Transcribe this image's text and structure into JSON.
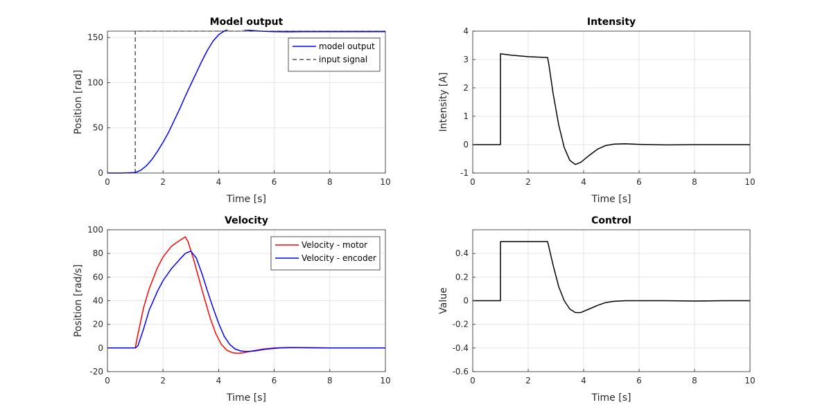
{
  "chart_data": [
    {
      "type": "line",
      "title": "Model output",
      "xlabel": "Time [s]",
      "ylabel": "Position [rad]",
      "xlim": [
        0,
        10
      ],
      "ylim": [
        0,
        157
      ],
      "xticks": [
        "0",
        "2",
        "4",
        "6",
        "8",
        "10"
      ],
      "yticks": [
        "0",
        "50",
        "100",
        "150"
      ],
      "grid": true,
      "legend": "top-right",
      "series": [
        {
          "name": "model output",
          "color": "#0000ff",
          "style": "solid",
          "x": [
            0,
            0.5,
            1.0,
            1.2,
            1.4,
            1.6,
            1.8,
            2.0,
            2.2,
            2.4,
            2.6,
            2.8,
            3.0,
            3.2,
            3.4,
            3.6,
            3.8,
            4.0,
            4.2,
            4.4,
            4.6,
            4.8,
            5.0,
            5.5,
            6.0,
            6.5,
            7.0,
            8.0,
            9.0,
            10.0
          ],
          "y": [
            0,
            0,
            0.5,
            3,
            8,
            15,
            24,
            34,
            45,
            58,
            71,
            85,
            98,
            111,
            124,
            136,
            146,
            153,
            157,
            159.5,
            160,
            159.3,
            158.2,
            157,
            156.4,
            156.2,
            156.4,
            156.5,
            156.5,
            156.5
          ]
        },
        {
          "name": "input signal",
          "color": "#000000",
          "style": "dashed",
          "x": [
            0,
            1.0,
            1.0,
            10
          ],
          "y": [
            0,
            0,
            157,
            157
          ]
        }
      ]
    },
    {
      "type": "line",
      "title": "Intensity",
      "xlabel": "Time [s]",
      "ylabel": "Intensity [A]",
      "xlim": [
        0,
        10
      ],
      "ylim": [
        -1,
        4
      ],
      "xticks": [
        "0",
        "2",
        "4",
        "6",
        "8",
        "10"
      ],
      "yticks": [
        "-1",
        "0",
        "1",
        "2",
        "3",
        "4"
      ],
      "grid": true,
      "series": [
        {
          "color": "#000000",
          "style": "solid",
          "x": [
            0,
            1.0,
            1.0,
            1.4,
            2.0,
            2.7,
            2.75,
            2.9,
            3.1,
            3.3,
            3.5,
            3.7,
            3.9,
            4.2,
            4.5,
            4.8,
            5.1,
            5.5,
            6.0,
            6.5,
            7.0,
            8.0,
            9.0,
            10.0
          ],
          "y": [
            0,
            0,
            3.2,
            3.15,
            3.1,
            3.07,
            2.8,
            1.8,
            0.7,
            -0.1,
            -0.55,
            -0.7,
            -0.62,
            -0.38,
            -0.16,
            -0.03,
            0.02,
            0.03,
            0.01,
            0.0,
            -0.01,
            0,
            0,
            0
          ]
        }
      ]
    },
    {
      "type": "line",
      "title": "Velocity",
      "xlabel": "Time [s]",
      "ylabel": "Position [rad/s]",
      "xlim": [
        0,
        10
      ],
      "ylim": [
        -20,
        100
      ],
      "xticks": [
        "0",
        "2",
        "4",
        "6",
        "8",
        "10"
      ],
      "yticks": [
        "-20",
        "0",
        "20",
        "40",
        "60",
        "80",
        "100"
      ],
      "grid": true,
      "legend": "top-right",
      "series": [
        {
          "name": "Velocity - motor",
          "color": "#ff0000",
          "style": "solid",
          "x": [
            0,
            1.0,
            1.1,
            1.3,
            1.5,
            1.8,
            2.0,
            2.3,
            2.6,
            2.8,
            2.9,
            3.1,
            3.3,
            3.5,
            3.7,
            3.9,
            4.1,
            4.3,
            4.5,
            4.7,
            4.9,
            5.2,
            5.6,
            6.0,
            6.5,
            7.0,
            8.0,
            9.0,
            10.0
          ],
          "y": [
            0,
            0,
            12,
            34,
            50,
            68,
            77,
            86,
            91,
            94,
            90,
            75,
            58,
            41,
            25,
            12,
            3,
            -2,
            -4,
            -4.5,
            -4,
            -2.5,
            -1,
            0,
            0.4,
            0.3,
            0,
            0,
            0
          ]
        },
        {
          "name": "Velocity - encoder",
          "color": "#0000ff",
          "style": "solid",
          "x": [
            0,
            1.0,
            1.1,
            1.3,
            1.5,
            1.8,
            2.0,
            2.3,
            2.6,
            2.8,
            3.0,
            3.2,
            3.4,
            3.6,
            3.8,
            4.0,
            4.2,
            4.4,
            4.6,
            4.8,
            5.0,
            5.3,
            5.7,
            6.2,
            6.7,
            7.2,
            8.0,
            9.0,
            10.0
          ],
          "y": [
            0,
            0,
            2,
            16,
            32,
            48,
            57,
            67,
            75,
            80,
            82,
            76,
            63,
            48,
            34,
            21,
            10,
            3,
            -1,
            -2.5,
            -3,
            -2.5,
            -1,
            0,
            0.3,
            0.2,
            0,
            0,
            0
          ]
        }
      ]
    },
    {
      "type": "line",
      "title": "Control",
      "xlabel": "Time [s]",
      "ylabel": "Value",
      "xlim": [
        0,
        10
      ],
      "ylim": [
        -0.6,
        0.6
      ],
      "xticks": [
        "0",
        "2",
        "4",
        "6",
        "8",
        "10"
      ],
      "yticks": [
        "-0.6",
        "-0.4",
        "-0.2",
        "0",
        "0.2",
        "0.4"
      ],
      "grid": true,
      "series": [
        {
          "color": "#000000",
          "style": "solid",
          "x": [
            0,
            1.0,
            1.0,
            2.7,
            2.75,
            2.9,
            3.1,
            3.3,
            3.5,
            3.7,
            3.9,
            4.2,
            4.5,
            4.8,
            5.1,
            5.5,
            6.0,
            6.5,
            7.0,
            8.0,
            9.0,
            10.0
          ],
          "y": [
            0,
            0,
            0.5,
            0.5,
            0.45,
            0.3,
            0.12,
            0.0,
            -0.07,
            -0.1,
            -0.1,
            -0.07,
            -0.04,
            -0.015,
            -0.005,
            0.0,
            0.0,
            0.0,
            0.0,
            -0.003,
            0,
            0
          ]
        }
      ]
    }
  ]
}
